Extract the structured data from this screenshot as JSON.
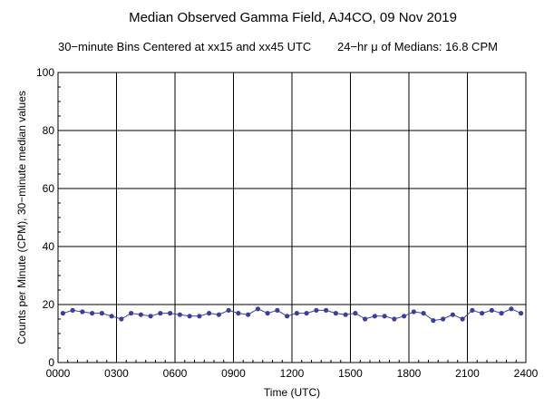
{
  "chart_data": {
    "type": "line",
    "title": "Median Observed Gamma Field, AJ4CO, 09 Nov 2019",
    "subtitle_left": "30−minute Bins Centered at xx15 and xx45 UTC",
    "subtitle_right": "24−hr μ of Medians: 16.8 CPM",
    "xlabel": "Time (UTC)",
    "ylabel": "Counts per Minute (CPM), 30−minute median values",
    "xlim": [
      0,
      24
    ],
    "ylim": [
      0,
      100
    ],
    "x_ticks": [
      0,
      3,
      6,
      9,
      12,
      15,
      18,
      21,
      24
    ],
    "x_tick_labels": [
      "0000",
      "0300",
      "0600",
      "0900",
      "1200",
      "1500",
      "1800",
      "2100",
      "2400"
    ],
    "y_ticks": [
      0,
      20,
      40,
      60,
      80,
      100
    ],
    "y_tick_labels": [
      "0",
      "20",
      "40",
      "60",
      "80",
      "100"
    ],
    "grid": true,
    "series_color": "#3a3f9e",
    "series": [
      {
        "x": [
          0.25,
          0.75,
          1.25,
          1.75,
          2.25,
          2.75,
          3.25,
          3.75,
          4.25,
          4.75,
          5.25,
          5.75,
          6.25,
          6.75,
          7.25,
          7.75,
          8.25,
          8.75,
          9.25,
          9.75,
          10.25,
          10.75,
          11.25,
          11.75,
          12.25,
          12.75,
          13.25,
          13.75,
          14.25,
          14.75,
          15.25,
          15.75,
          16.25,
          16.75,
          17.25,
          17.75,
          18.25,
          18.75,
          19.25,
          19.75,
          20.25,
          20.75,
          21.25,
          21.75,
          22.25,
          22.75,
          23.25,
          23.75
        ],
        "y": [
          17.0,
          18.0,
          17.5,
          17.0,
          17.0,
          16.0,
          15.0,
          17.0,
          16.5,
          16.0,
          17.0,
          17.0,
          16.5,
          16.0,
          16.0,
          17.0,
          16.5,
          18.0,
          17.0,
          16.5,
          18.5,
          17.0,
          18.0,
          16.0,
          17.0,
          17.0,
          18.0,
          18.0,
          17.0,
          16.5,
          17.0,
          15.0,
          16.0,
          16.0,
          15.0,
          16.0,
          17.5,
          17.0,
          14.5,
          15.0,
          16.5,
          15.0,
          18.0,
          17.0,
          18.0,
          17.0,
          18.5,
          17.0
        ]
      }
    ]
  }
}
